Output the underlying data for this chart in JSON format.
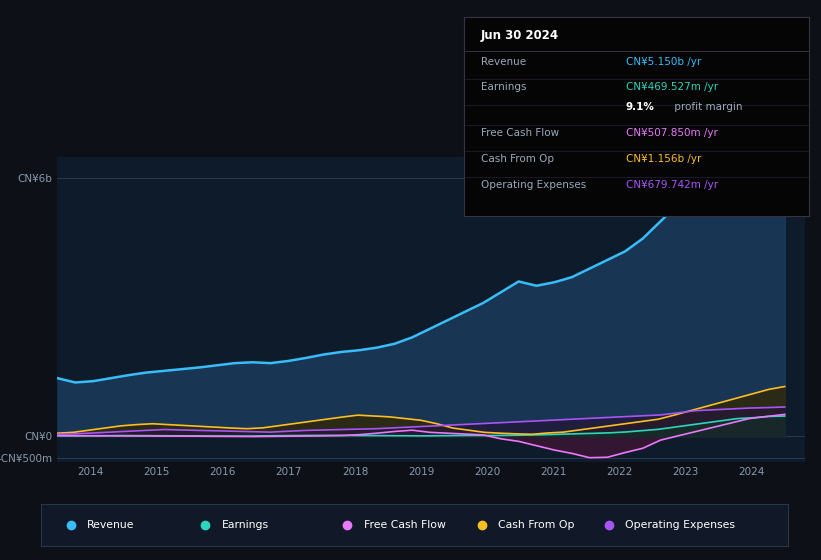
{
  "bg_color": "#0d1117",
  "chart_bg": "#0d1b2a",
  "ylim": [
    -600,
    6500
  ],
  "xlim": [
    2013.5,
    2024.8
  ],
  "yticks": [
    -500,
    0,
    6000
  ],
  "ytick_labels": [
    "-CN¥500m",
    "CN¥0",
    "CN¥6b"
  ],
  "xtick_positions": [
    2014,
    2015,
    2016,
    2017,
    2018,
    2019,
    2020,
    2021,
    2022,
    2023,
    2024
  ],
  "info_box": {
    "title": "Jun 30 2024",
    "rows": [
      {
        "label": "Revenue",
        "value": "CN¥5.150b /yr",
        "color": "#38bdf8"
      },
      {
        "label": "Earnings",
        "value": "CN¥469.527m /yr",
        "color": "#2dd4bf"
      },
      {
        "label": "",
        "value": "9.1% profit margin",
        "color": "#ffffff",
        "is_margin": true
      },
      {
        "label": "Free Cash Flow",
        "value": "CN¥507.850m /yr",
        "color": "#e879f9"
      },
      {
        "label": "Cash From Op",
        "value": "CN¥1.156b /yr",
        "color": "#fbbf24"
      },
      {
        "label": "Operating Expenses",
        "value": "CN¥679.742m /yr",
        "color": "#a855f7"
      }
    ]
  },
  "legend": [
    {
      "label": "Revenue",
      "color": "#38bdf8"
    },
    {
      "label": "Earnings",
      "color": "#2dd4bf"
    },
    {
      "label": "Free Cash Flow",
      "color": "#e879f9"
    },
    {
      "label": "Cash From Op",
      "color": "#fbbf24"
    },
    {
      "label": "Operating Expenses",
      "color": "#a855f7"
    }
  ],
  "revenue": [
    1350,
    1250,
    1280,
    1350,
    1420,
    1480,
    1520,
    1560,
    1600,
    1650,
    1700,
    1720,
    1700,
    1750,
    1820,
    1900,
    1960,
    2000,
    2060,
    2150,
    2300,
    2500,
    2700,
    2900,
    3100,
    3350,
    3600,
    3500,
    3580,
    3700,
    3900,
    4100,
    4300,
    4600,
    5000,
    5400,
    5750,
    5700,
    5850,
    6050,
    5700,
    5150
  ],
  "earnings": [
    10,
    8,
    10,
    12,
    15,
    13,
    12,
    10,
    8,
    6,
    4,
    3,
    2,
    8,
    12,
    15,
    18,
    20,
    18,
    16,
    14,
    12,
    10,
    8,
    10,
    14,
    18,
    16,
    18,
    22,
    28,
    38,
    48,
    58,
    68,
    80,
    100,
    130,
    160,
    210,
    260,
    310,
    360,
    410,
    430,
    460,
    469
  ],
  "free_cash_flow": [
    15,
    12,
    10,
    8,
    6,
    5,
    3,
    2,
    0,
    -3,
    -5,
    -8,
    -4,
    0,
    4,
    8,
    15,
    35,
    70,
    110,
    140,
    90,
    70,
    50,
    30,
    -60,
    -120,
    -220,
    -320,
    -400,
    -500,
    -490,
    -380,
    -280,
    -90,
    10,
    110,
    210,
    310,
    410,
    460,
    508
  ],
  "cash_from_op": [
    70,
    90,
    140,
    190,
    240,
    270,
    290,
    270,
    250,
    230,
    210,
    190,
    175,
    195,
    245,
    295,
    345,
    395,
    445,
    490,
    470,
    450,
    410,
    370,
    290,
    190,
    140,
    90,
    70,
    55,
    45,
    75,
    95,
    145,
    195,
    245,
    295,
    345,
    395,
    490,
    590,
    690,
    790,
    890,
    990,
    1090,
    1156
  ],
  "operating_expenses": [
    45,
    55,
    75,
    95,
    115,
    135,
    155,
    145,
    135,
    125,
    115,
    105,
    95,
    115,
    135,
    145,
    155,
    165,
    175,
    195,
    215,
    235,
    255,
    275,
    295,
    315,
    335,
    355,
    375,
    395,
    415,
    435,
    455,
    475,
    495,
    545,
    595,
    615,
    635,
    655,
    665,
    680
  ]
}
